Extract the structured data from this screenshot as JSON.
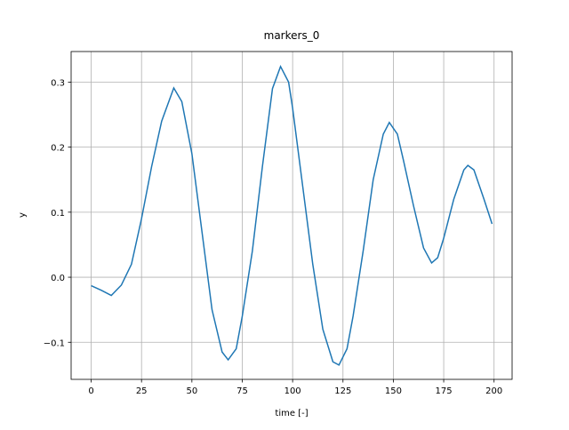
{
  "chart_data": {
    "type": "line",
    "title": "markers_0",
    "xlabel": "time [-]",
    "ylabel": "y",
    "x": [
      0,
      5,
      10,
      15,
      20,
      25,
      30,
      35,
      41,
      45,
      50,
      55,
      60,
      65,
      68,
      72,
      75,
      80,
      85,
      90,
      94,
      98,
      100,
      105,
      110,
      115,
      120,
      123,
      127,
      130,
      135,
      140,
      145,
      148,
      152,
      155,
      160,
      165,
      169,
      172,
      175,
      180,
      185,
      187,
      190,
      195,
      199
    ],
    "series": [
      {
        "name": "y",
        "color": "#1f77b4",
        "values": [
          -0.013,
          -0.02,
          -0.028,
          -0.012,
          0.02,
          0.09,
          0.17,
          0.24,
          0.291,
          0.27,
          0.19,
          0.07,
          -0.05,
          -0.115,
          -0.127,
          -0.11,
          -0.06,
          0.04,
          0.17,
          0.29,
          0.324,
          0.3,
          0.26,
          0.14,
          0.02,
          -0.08,
          -0.13,
          -0.135,
          -0.11,
          -0.06,
          0.04,
          0.15,
          0.22,
          0.238,
          0.22,
          0.18,
          0.11,
          0.045,
          0.022,
          0.03,
          0.06,
          0.12,
          0.165,
          0.172,
          0.165,
          0.12,
          0.082
        ]
      }
    ],
    "xlim": [
      -9.95,
      208.95
    ],
    "xticks": [
      0,
      25,
      50,
      75,
      100,
      125,
      150,
      175,
      200
    ],
    "ylim": [
      -0.157,
      0.347
    ],
    "yticks": [
      {
        "value": -0.1,
        "label": "−0.1"
      },
      {
        "value": 0,
        "label": "0.0"
      },
      0.1,
      0.2,
      0.3
    ],
    "grid": true
  }
}
